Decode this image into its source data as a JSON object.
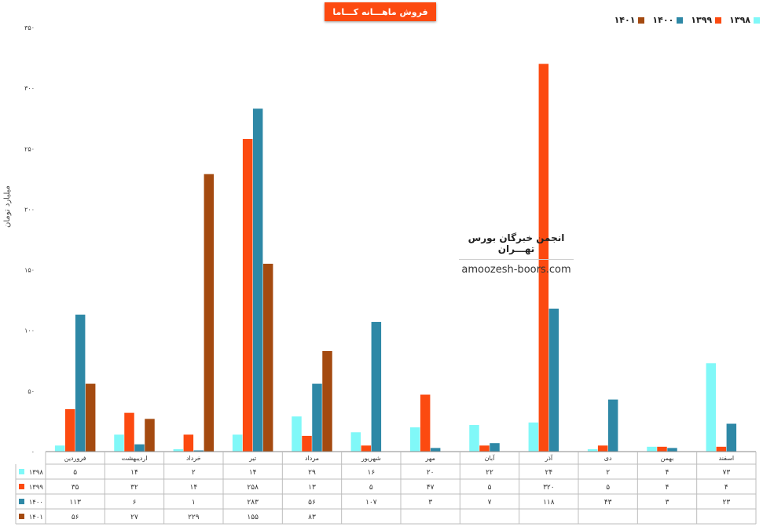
{
  "chart_data": {
    "type": "bar",
    "title": "فروش ماهـــانه کـــاما",
    "ylabel": "میلیارد تومان",
    "ylim": [
      0,
      350
    ],
    "yticks": [
      "۰",
      "۵۰",
      "۱۰۰",
      "۱۵۰",
      "۲۰۰",
      "۲۵۰",
      "۳۰۰",
      "۳۵۰"
    ],
    "ytick_values": [
      0,
      50,
      100,
      150,
      200,
      250,
      300,
      350
    ],
    "legend_position": "top-right",
    "categories": [
      "فروردین",
      "اردیبهشت",
      "خرداد",
      "تیر",
      "مرداد",
      "شهریور",
      "مهر",
      "آبان",
      "آذر",
      "دی",
      "بهمن",
      "اسفند"
    ],
    "series": [
      {
        "name": "۱۳۹۸",
        "color": "#80f8f8",
        "values": [
          5,
          14,
          2,
          14,
          29,
          16,
          20,
          22,
          24,
          2,
          4,
          73
        ],
        "labels": [
          "۵",
          "۱۴",
          "۲",
          "۱۴",
          "۲۹",
          "۱۶",
          "۲۰",
          "۲۲",
          "۲۴",
          "۲",
          "۴",
          "۷۳"
        ]
      },
      {
        "name": "۱۳۹۹",
        "color": "#fc4a10",
        "values": [
          35,
          32,
          14,
          258,
          13,
          5,
          47,
          5,
          320,
          5,
          4,
          4
        ],
        "labels": [
          "۳۵",
          "۳۲",
          "۱۴",
          "۲۵۸",
          "۱۳",
          "۵",
          "۴۷",
          "۵",
          "۳۲۰",
          "۵",
          "۴",
          "۴"
        ]
      },
      {
        "name": "۱۴۰۰",
        "color": "#2e88a6",
        "values": [
          113,
          6,
          1,
          283,
          56,
          107,
          3,
          7,
          118,
          43,
          3,
          23
        ],
        "labels": [
          "۱۱۳",
          "۶",
          "۱",
          "۲۸۳",
          "۵۶",
          "۱۰۷",
          "۳",
          "۷",
          "۱۱۸",
          "۴۳",
          "۳",
          "۲۳"
        ]
      },
      {
        "name": "۱۴۰۱",
        "color": "#a44a10",
        "values": [
          56,
          27,
          229,
          155,
          83,
          null,
          null,
          null,
          null,
          null,
          null,
          null
        ],
        "labels": [
          "۵۶",
          "۲۷",
          "۲۲۹",
          "۱۵۵",
          "۸۳",
          "",
          "",
          "",
          "",
          "",
          "",
          ""
        ]
      }
    ]
  },
  "watermark": {
    "title": "انجمن خبرگان بورس تهـــران",
    "url": "amoozesh-boors.com"
  }
}
